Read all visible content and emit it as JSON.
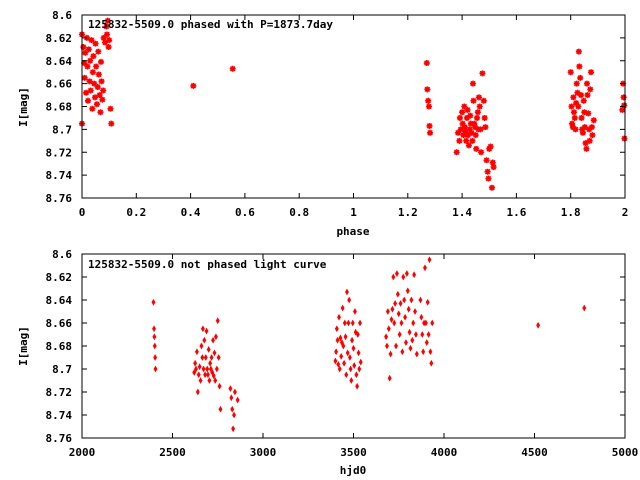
{
  "chart_data": [
    {
      "type": "scatter",
      "title": "125832-5509.0 phased with P=1873.7day",
      "xlabel": "phase",
      "ylabel": "I[mag]",
      "xlim": [
        0,
        2
      ],
      "ylim": [
        8.76,
        8.6
      ],
      "y_inverted": true,
      "x_ticks": [
        "0",
        "0.2",
        "0.4",
        "0.6",
        "0.8",
        "1",
        "1.2",
        "1.4",
        "1.6",
        "1.8",
        "2"
      ],
      "y_ticks": [
        "8.6",
        "8.62",
        "8.64",
        "8.66",
        "8.68",
        "8.7",
        "8.72",
        "8.74",
        "8.76"
      ],
      "grid": false,
      "series": [
        {
          "color": "#ff0000",
          "points": [
            [
              0.0,
              8.617
            ],
            [
              0.0,
              8.695
            ],
            [
              0.005,
              8.628
            ],
            [
              0.008,
              8.642
            ],
            [
              0.01,
              8.655
            ],
            [
              0.012,
              8.633
            ],
            [
              0.015,
              8.668
            ],
            [
              0.018,
              8.62
            ],
            [
              0.02,
              8.645
            ],
            [
              0.022,
              8.675
            ],
            [
              0.025,
              8.63
            ],
            [
              0.028,
              8.658
            ],
            [
              0.03,
              8.64
            ],
            [
              0.032,
              8.666
            ],
            [
              0.035,
              8.622
            ],
            [
              0.038,
              8.682
            ],
            [
              0.04,
              8.65
            ],
            [
              0.042,
              8.636
            ],
            [
              0.045,
              8.66
            ],
            [
              0.048,
              8.672
            ],
            [
              0.05,
              8.625
            ],
            [
              0.052,
              8.645
            ],
            [
              0.055,
              8.678
            ],
            [
              0.058,
              8.663
            ],
            [
              0.06,
              8.632
            ],
            [
              0.062,
              8.652
            ],
            [
              0.065,
              8.67
            ],
            [
              0.068,
              8.685
            ],
            [
              0.07,
              8.641
            ],
            [
              0.072,
              8.658
            ],
            [
              0.075,
              8.674
            ],
            [
              0.078,
              8.666
            ],
            [
              0.08,
              8.62
            ],
            [
              0.085,
              8.624
            ],
            [
              0.09,
              8.61
            ],
            [
              0.092,
              8.617
            ],
            [
              0.095,
              8.605
            ],
            [
              0.098,
              8.628
            ],
            [
              0.1,
              8.622
            ],
            [
              0.105,
              8.682
            ],
            [
              0.108,
              8.695
            ],
            [
              0.41,
              8.662
            ],
            [
              0.555,
              8.647
            ],
            [
              1.27,
              8.642
            ],
            [
              1.272,
              8.665
            ],
            [
              1.275,
              8.675
            ],
            [
              1.278,
              8.68
            ],
            [
              1.28,
              8.697
            ],
            [
              1.282,
              8.703
            ],
            [
              1.38,
              8.72
            ],
            [
              1.385,
              8.703
            ],
            [
              1.39,
              8.71
            ],
            [
              1.392,
              8.69
            ],
            [
              1.395,
              8.7
            ],
            [
              1.4,
              8.685
            ],
            [
              1.402,
              8.695
            ],
            [
              1.405,
              8.705
            ],
            [
              1.408,
              8.68
            ],
            [
              1.41,
              8.698
            ],
            [
              1.412,
              8.702
            ],
            [
              1.415,
              8.71
            ],
            [
              1.418,
              8.69
            ],
            [
              1.42,
              8.683
            ],
            [
              1.422,
              8.705
            ],
            [
              1.425,
              8.714
            ],
            [
              1.428,
              8.7
            ],
            [
              1.43,
              8.688
            ],
            [
              1.432,
              8.695
            ],
            [
              1.435,
              8.703
            ],
            [
              1.438,
              8.71
            ],
            [
              1.44,
              8.66
            ],
            [
              1.442,
              8.675
            ],
            [
              1.445,
              8.695
            ],
            [
              1.448,
              8.698
            ],
            [
              1.45,
              8.705
            ],
            [
              1.452,
              8.717
            ],
            [
              1.455,
              8.69
            ],
            [
              1.458,
              8.685
            ],
            [
              1.46,
              8.7
            ],
            [
              1.462,
              8.672
            ],
            [
              1.465,
              8.68
            ],
            [
              1.468,
              8.7
            ],
            [
              1.47,
              8.72
            ],
            [
              1.475,
              8.651
            ],
            [
              1.48,
              8.675
            ],
            [
              1.483,
              8.69
            ],
            [
              1.486,
              8.698
            ],
            [
              1.49,
              8.727
            ],
            [
              1.494,
              8.737
            ],
            [
              1.497,
              8.743
            ],
            [
              1.5,
              8.717
            ],
            [
              1.505,
              8.715
            ],
            [
              1.51,
              8.751
            ],
            [
              1.513,
              8.729
            ],
            [
              1.516,
              8.733
            ],
            [
              1.8,
              8.65
            ],
            [
              1.803,
              8.68
            ],
            [
              1.805,
              8.695
            ],
            [
              1.808,
              8.698
            ],
            [
              1.81,
              8.672
            ],
            [
              1.812,
              8.685
            ],
            [
              1.815,
              8.69
            ],
            [
              1.818,
              8.7
            ],
            [
              1.82,
              8.677
            ],
            [
              1.822,
              8.66
            ],
            [
              1.825,
              8.668
            ],
            [
              1.828,
              8.68
            ],
            [
              1.83,
              8.632
            ],
            [
              1.832,
              8.645
            ],
            [
              1.835,
              8.655
            ],
            [
              1.838,
              8.67
            ],
            [
              1.84,
              8.69
            ],
            [
              1.842,
              8.7
            ],
            [
              1.845,
              8.703
            ],
            [
              1.848,
              8.675
            ],
            [
              1.85,
              8.685
            ],
            [
              1.852,
              8.698
            ],
            [
              1.855,
              8.712
            ],
            [
              1.858,
              8.717
            ],
            [
              1.86,
              8.66
            ],
            [
              1.862,
              8.67
            ],
            [
              1.865,
              8.686
            ],
            [
              1.868,
              8.7
            ],
            [
              1.87,
              8.71
            ],
            [
              1.872,
              8.665
            ],
            [
              1.875,
              8.65
            ],
            [
              1.878,
              8.698
            ],
            [
              1.88,
              8.705
            ],
            [
              1.885,
              8.692
            ],
            [
              1.99,
              8.683
            ],
            [
              1.993,
              8.66
            ],
            [
              1.995,
              8.672
            ],
            [
              1.997,
              8.679
            ],
            [
              1.998,
              8.708
            ]
          ]
        }
      ]
    },
    {
      "type": "scatter",
      "title": "125832-5509.0 not phased light curve",
      "xlabel": "hjd0",
      "ylabel": "I[mag]",
      "xlim": [
        2000,
        5000
      ],
      "ylim": [
        8.76,
        8.6
      ],
      "y_inverted": true,
      "x_ticks": [
        "2000",
        "2500",
        "3000",
        "3500",
        "4000",
        "4500",
        "5000"
      ],
      "y_ticks": [
        "8.6",
        "8.62",
        "8.64",
        "8.66",
        "8.68",
        "8.7",
        "8.72",
        "8.74",
        "8.76"
      ],
      "grid": false,
      "series": [
        {
          "color": "#ff0000",
          "points": [
            [
              2395,
              8.642
            ],
            [
              2398,
              8.665
            ],
            [
              2400,
              8.672
            ],
            [
              2402,
              8.68
            ],
            [
              2404,
              8.69
            ],
            [
              2406,
              8.7
            ],
            [
              2620,
              8.703
            ],
            [
              2625,
              8.695
            ],
            [
              2630,
              8.7
            ],
            [
              2635,
              8.685
            ],
            [
              2640,
              8.72
            ],
            [
              2645,
              8.705
            ],
            [
              2650,
              8.698
            ],
            [
              2655,
              8.71
            ],
            [
              2660,
              8.68
            ],
            [
              2665,
              8.69
            ],
            [
              2668,
              8.665
            ],
            [
              2672,
              8.7
            ],
            [
              2676,
              8.675
            ],
            [
              2680,
              8.705
            ],
            [
              2684,
              8.69
            ],
            [
              2688,
              8.667
            ],
            [
              2692,
              8.7
            ],
            [
              2696,
              8.705
            ],
            [
              2700,
              8.683
            ],
            [
              2704,
              8.71
            ],
            [
              2708,
              8.695
            ],
            [
              2712,
              8.7
            ],
            [
              2716,
              8.69
            ],
            [
              2720,
              8.703
            ],
            [
              2724,
              8.675
            ],
            [
              2728,
              8.706
            ],
            [
              2732,
              8.686
            ],
            [
              2736,
              8.71
            ],
            [
              2740,
              8.672
            ],
            [
              2745,
              8.7
            ],
            [
              2750,
              8.658
            ],
            [
              2755,
              8.69
            ],
            [
              2760,
              8.715
            ],
            [
              2765,
              8.735
            ],
            [
              2820,
              8.717
            ],
            [
              2825,
              8.725
            ],
            [
              2830,
              8.735
            ],
            [
              2835,
              8.752
            ],
            [
              2840,
              8.74
            ],
            [
              2845,
              8.72
            ],
            [
              2860,
              8.727
            ],
            [
              3400,
              8.693
            ],
            [
              3404,
              8.685
            ],
            [
              3408,
              8.665
            ],
            [
              3412,
              8.675
            ],
            [
              3416,
              8.696
            ],
            [
              3420,
              8.655
            ],
            [
              3424,
              8.7
            ],
            [
              3428,
              8.673
            ],
            [
              3432,
              8.689
            ],
            [
              3436,
              8.677
            ],
            [
              3440,
              8.647
            ],
            [
              3444,
              8.68
            ],
            [
              3448,
              8.695
            ],
            [
              3452,
              8.66
            ],
            [
              3456,
              8.672
            ],
            [
              3460,
              8.705
            ],
            [
              3464,
              8.633
            ],
            [
              3468,
              8.686
            ],
            [
              3472,
              8.66
            ],
            [
              3476,
              8.64
            ],
            [
              3480,
              8.69
            ],
            [
              3484,
              8.7
            ],
            [
              3488,
              8.71
            ],
            [
              3492,
              8.675
            ],
            [
              3496,
              8.66
            ],
            [
              3500,
              8.682
            ],
            [
              3504,
              8.697
            ],
            [
              3508,
              8.65
            ],
            [
              3512,
              8.668
            ],
            [
              3516,
              8.705
            ],
            [
              3520,
              8.715
            ],
            [
              3524,
              8.67
            ],
            [
              3528,
              8.686
            ],
            [
              3532,
              8.7
            ],
            [
              3536,
              8.66
            ],
            [
              3540,
              8.694
            ],
            [
              3680,
              8.672
            ],
            [
              3685,
              8.68
            ],
            [
              3690,
              8.65
            ],
            [
              3695,
              8.665
            ],
            [
              3700,
              8.708
            ],
            [
              3705,
              8.687
            ],
            [
              3710,
              8.657
            ],
            [
              3715,
              8.648
            ],
            [
              3720,
              8.62
            ],
            [
              3725,
              8.66
            ],
            [
              3730,
              8.643
            ],
            [
              3735,
              8.68
            ],
            [
              3740,
              8.617
            ],
            [
              3745,
              8.635
            ],
            [
              3750,
              8.652
            ],
            [
              3755,
              8.67
            ],
            [
              3760,
              8.643
            ],
            [
              3765,
              8.66
            ],
            [
              3770,
              8.685
            ],
            [
              3775,
              8.62
            ],
            [
              3780,
              8.64
            ],
            [
              3785,
              8.655
            ],
            [
              3790,
              8.677
            ],
            [
              3795,
              8.617
            ],
            [
              3800,
              8.632
            ],
            [
              3805,
              8.648
            ],
            [
              3810,
              8.668
            ],
            [
              3815,
              8.682
            ],
            [
              3820,
              8.64
            ],
            [
              3825,
              8.675
            ],
            [
              3830,
              8.66
            ],
            [
              3835,
              8.618
            ],
            [
              3840,
              8.65
            ],
            [
              3845,
              8.67
            ],
            [
              3850,
              8.687
            ],
            [
              3870,
              8.64
            ],
            [
              3875,
              8.655
            ],
            [
              3880,
              8.67
            ],
            [
              3885,
              8.685
            ],
            [
              3890,
              8.66
            ],
            [
              3895,
              8.612
            ],
            [
              3900,
              8.66
            ],
            [
              3905,
              8.677
            ],
            [
              3910,
              8.642
            ],
            [
              3915,
              8.67
            ],
            [
              3920,
              8.605
            ],
            [
              3925,
              8.685
            ],
            [
              3930,
              8.695
            ],
            [
              3935,
              8.66
            ],
            [
              4520,
              8.662
            ],
            [
              4775,
              8.647
            ]
          ]
        }
      ]
    }
  ]
}
